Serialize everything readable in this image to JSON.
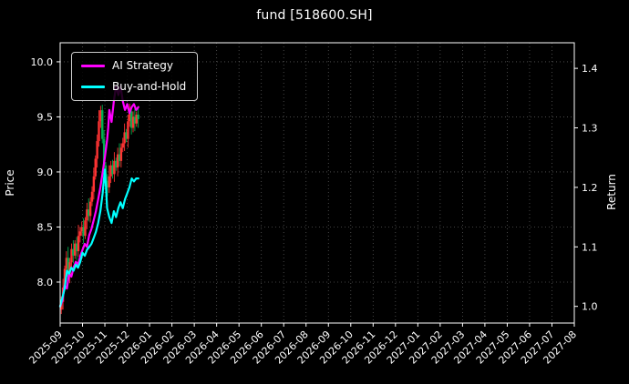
{
  "title": "fund [518600.SH]",
  "colors": {
    "background": "#000000",
    "text": "#ffffff",
    "spine": "#ffffff",
    "grid": "#9e9e9e",
    "ai_strategy": "#ff00ff",
    "buy_and_hold": "#00ffff",
    "candle_up": "#ff3333",
    "candle_down": "#00b050"
  },
  "legend": {
    "items": [
      {
        "label": "AI Strategy",
        "color": "#ff00ff"
      },
      {
        "label": "Buy-and-Hold",
        "color": "#00ffff"
      }
    ]
  },
  "chart_data": {
    "type": "line+candlestick",
    "title": "fund [518600.SH]",
    "legend_position": "upper left",
    "grid": "dotted",
    "x_axis": {
      "months_span": 23,
      "tick_labels": [
        "2025-09",
        "2025-10",
        "2025-11",
        "2025-12",
        "2026-01",
        "2026-02",
        "2026-03",
        "2026-04",
        "2026-05",
        "2026-06",
        "2026-07",
        "2026-08",
        "2026-09",
        "2026-10",
        "2026-11",
        "2026-12",
        "2027-01",
        "2027-02",
        "2027-03",
        "2027-04",
        "2027-05",
        "2027-06",
        "2027-07",
        "2027-08"
      ]
    },
    "price_axis": {
      "label": "Price",
      "side": "left",
      "tick_labels": [
        "8.0",
        "8.5",
        "9.0",
        "9.5",
        "10.0"
      ],
      "tick_values": [
        8.0,
        8.5,
        9.0,
        9.5,
        10.0
      ],
      "range": [
        7.628,
        10.173
      ]
    },
    "return_axis": {
      "label": "Return",
      "side": "right",
      "tick_labels": [
        "1.0",
        "1.1",
        "1.2",
        "1.3",
        "1.4"
      ],
      "tick_values": [
        1.0,
        1.1,
        1.2,
        1.3,
        1.4
      ],
      "range": [
        0.972,
        1.443
      ]
    },
    "series": [
      {
        "name": "AI Strategy",
        "axis": "return",
        "color": "#ff00ff",
        "x_months": [
          0,
          0.1,
          0.2,
          0.3,
          0.4,
          0.5,
          0.6,
          0.7,
          0.8,
          0.9,
          1.0,
          1.1,
          1.2,
          1.3,
          1.4,
          1.5,
          1.6,
          1.7,
          1.8,
          1.9,
          2.0,
          2.1,
          2.15,
          2.2,
          2.3,
          2.4,
          2.5,
          2.6,
          2.7,
          2.8,
          2.9,
          3.0,
          3.1,
          3.2,
          3.3,
          3.4,
          3.5
        ],
        "values": [
          1.0,
          1.01,
          1.035,
          1.03,
          1.055,
          1.05,
          1.065,
          1.075,
          1.07,
          1.085,
          1.095,
          1.105,
          1.1,
          1.12,
          1.13,
          1.145,
          1.16,
          1.18,
          1.2,
          1.225,
          1.25,
          1.28,
          1.3,
          1.33,
          1.31,
          1.345,
          1.37,
          1.355,
          1.37,
          1.345,
          1.33,
          1.34,
          1.325,
          1.335,
          1.34,
          1.33,
          1.335
        ]
      },
      {
        "name": "Buy-and-Hold",
        "axis": "return",
        "color": "#00ffff",
        "x_months": [
          0,
          0.1,
          0.2,
          0.3,
          0.4,
          0.5,
          0.6,
          0.7,
          0.8,
          0.9,
          1.0,
          1.1,
          1.2,
          1.3,
          1.4,
          1.5,
          1.6,
          1.7,
          1.8,
          1.9,
          2.0,
          2.05,
          2.1,
          2.2,
          2.3,
          2.4,
          2.5,
          2.6,
          2.7,
          2.8,
          2.9,
          3.0,
          3.1,
          3.2,
          3.3,
          3.4,
          3.5
        ],
        "values": [
          1.0,
          1.015,
          1.03,
          1.06,
          1.055,
          1.065,
          1.06,
          1.07,
          1.065,
          1.075,
          1.09,
          1.085,
          1.095,
          1.1,
          1.105,
          1.115,
          1.125,
          1.14,
          1.16,
          1.19,
          1.23,
          1.2,
          1.165,
          1.15,
          1.14,
          1.16,
          1.15,
          1.165,
          1.175,
          1.165,
          1.18,
          1.19,
          1.2,
          1.215,
          1.21,
          1.215,
          1.215
        ]
      }
    ],
    "candles": {
      "axis": "price",
      "up_color": "#ff3333",
      "down_color": "#00b050",
      "start_month": 0.05,
      "month_step": 0.0765,
      "open": [
        7.75,
        7.82,
        7.95,
        8.12,
        8.22,
        8.05,
        8.18,
        8.3,
        8.24,
        8.35,
        8.28,
        8.42,
        8.46,
        8.5,
        8.42,
        8.56,
        8.66,
        8.6,
        8.73,
        8.82,
        8.96,
        9.12,
        9.28,
        9.46,
        9.56,
        9.3,
        9.06,
        8.92,
        8.86,
        8.96,
        9.06,
        8.98,
        9.1,
        9.04,
        9.16,
        9.1,
        9.22,
        9.26,
        9.36,
        9.3,
        9.46,
        9.55,
        9.4,
        9.5,
        9.44,
        9.52
      ],
      "high": [
        7.87,
        8.03,
        8.15,
        8.28,
        8.32,
        8.22,
        8.35,
        8.38,
        8.38,
        8.41,
        8.52,
        8.5,
        8.55,
        8.58,
        8.59,
        8.72,
        8.76,
        8.77,
        8.87,
        9.04,
        9.15,
        9.34,
        9.56,
        9.6,
        9.61,
        9.38,
        9.09,
        8.98,
        9.06,
        9.1,
        9.11,
        9.18,
        9.13,
        9.22,
        9.26,
        9.26,
        9.31,
        9.44,
        9.39,
        9.52,
        9.62,
        9.59,
        9.55,
        9.58,
        9.55,
        9.58
      ],
      "low": [
        7.71,
        7.75,
        7.92,
        8.04,
        8.0,
        7.99,
        8.14,
        8.17,
        8.21,
        8.2,
        8.23,
        8.36,
        8.42,
        8.35,
        8.39,
        8.48,
        8.55,
        8.54,
        8.69,
        8.75,
        8.93,
        9.04,
        9.23,
        9.4,
        9.26,
        8.99,
        8.89,
        8.78,
        8.81,
        8.9,
        8.94,
        8.91,
        9.01,
        8.96,
        9.05,
        9.04,
        9.18,
        9.19,
        9.27,
        9.22,
        9.41,
        9.34,
        9.36,
        9.37,
        9.41,
        9.4
      ],
      "close": [
        7.82,
        7.95,
        8.12,
        8.22,
        8.05,
        8.18,
        8.3,
        8.24,
        8.35,
        8.28,
        8.42,
        8.46,
        8.5,
        8.42,
        8.56,
        8.66,
        8.6,
        8.73,
        8.82,
        8.96,
        9.12,
        9.28,
        9.46,
        9.56,
        9.3,
        9.06,
        8.92,
        8.86,
        8.96,
        9.06,
        8.98,
        9.1,
        9.04,
        9.16,
        9.1,
        9.22,
        9.26,
        9.36,
        9.3,
        9.46,
        9.55,
        9.4,
        9.5,
        9.44,
        9.52,
        9.48
      ]
    }
  }
}
